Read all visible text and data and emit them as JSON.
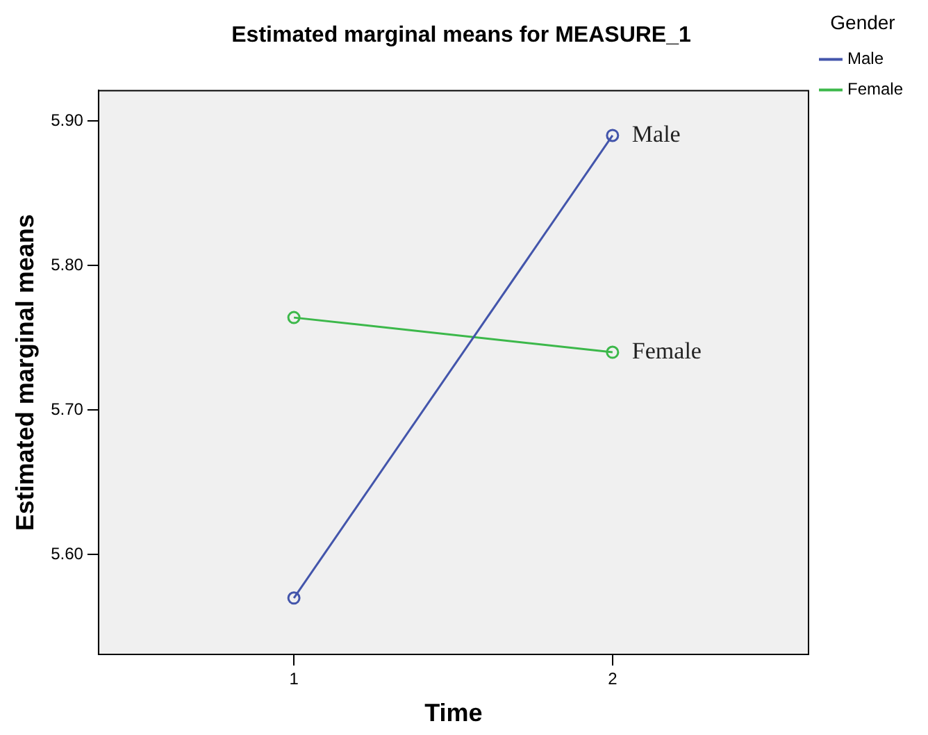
{
  "chart_data": {
    "type": "line",
    "title": "Estimated marginal means for MEASURE_1",
    "xlabel": "Time",
    "ylabel": "Estimated marginal means",
    "legend_title": "Gender",
    "x": [
      1,
      2
    ],
    "series": [
      {
        "name": "Male",
        "color": "#4355ab",
        "values": [
          5.57,
          5.89
        ]
      },
      {
        "name": "Female",
        "color": "#3cb84a",
        "values": [
          5.764,
          5.74
        ]
      }
    ],
    "xlim": [
      0.387,
      2.615
    ],
    "xticks": [
      1,
      2
    ],
    "ylim": [
      5.531,
      5.921
    ],
    "yticks": [
      {
        "value": 5.6,
        "label": "5.60"
      },
      {
        "value": 5.7,
        "label": "5.70"
      },
      {
        "value": 5.8,
        "label": "5.80"
      },
      {
        "value": 5.9,
        "label": "5.90"
      }
    ],
    "grid": false,
    "legend": "top right",
    "marker": "circle",
    "line_style": "solid"
  }
}
